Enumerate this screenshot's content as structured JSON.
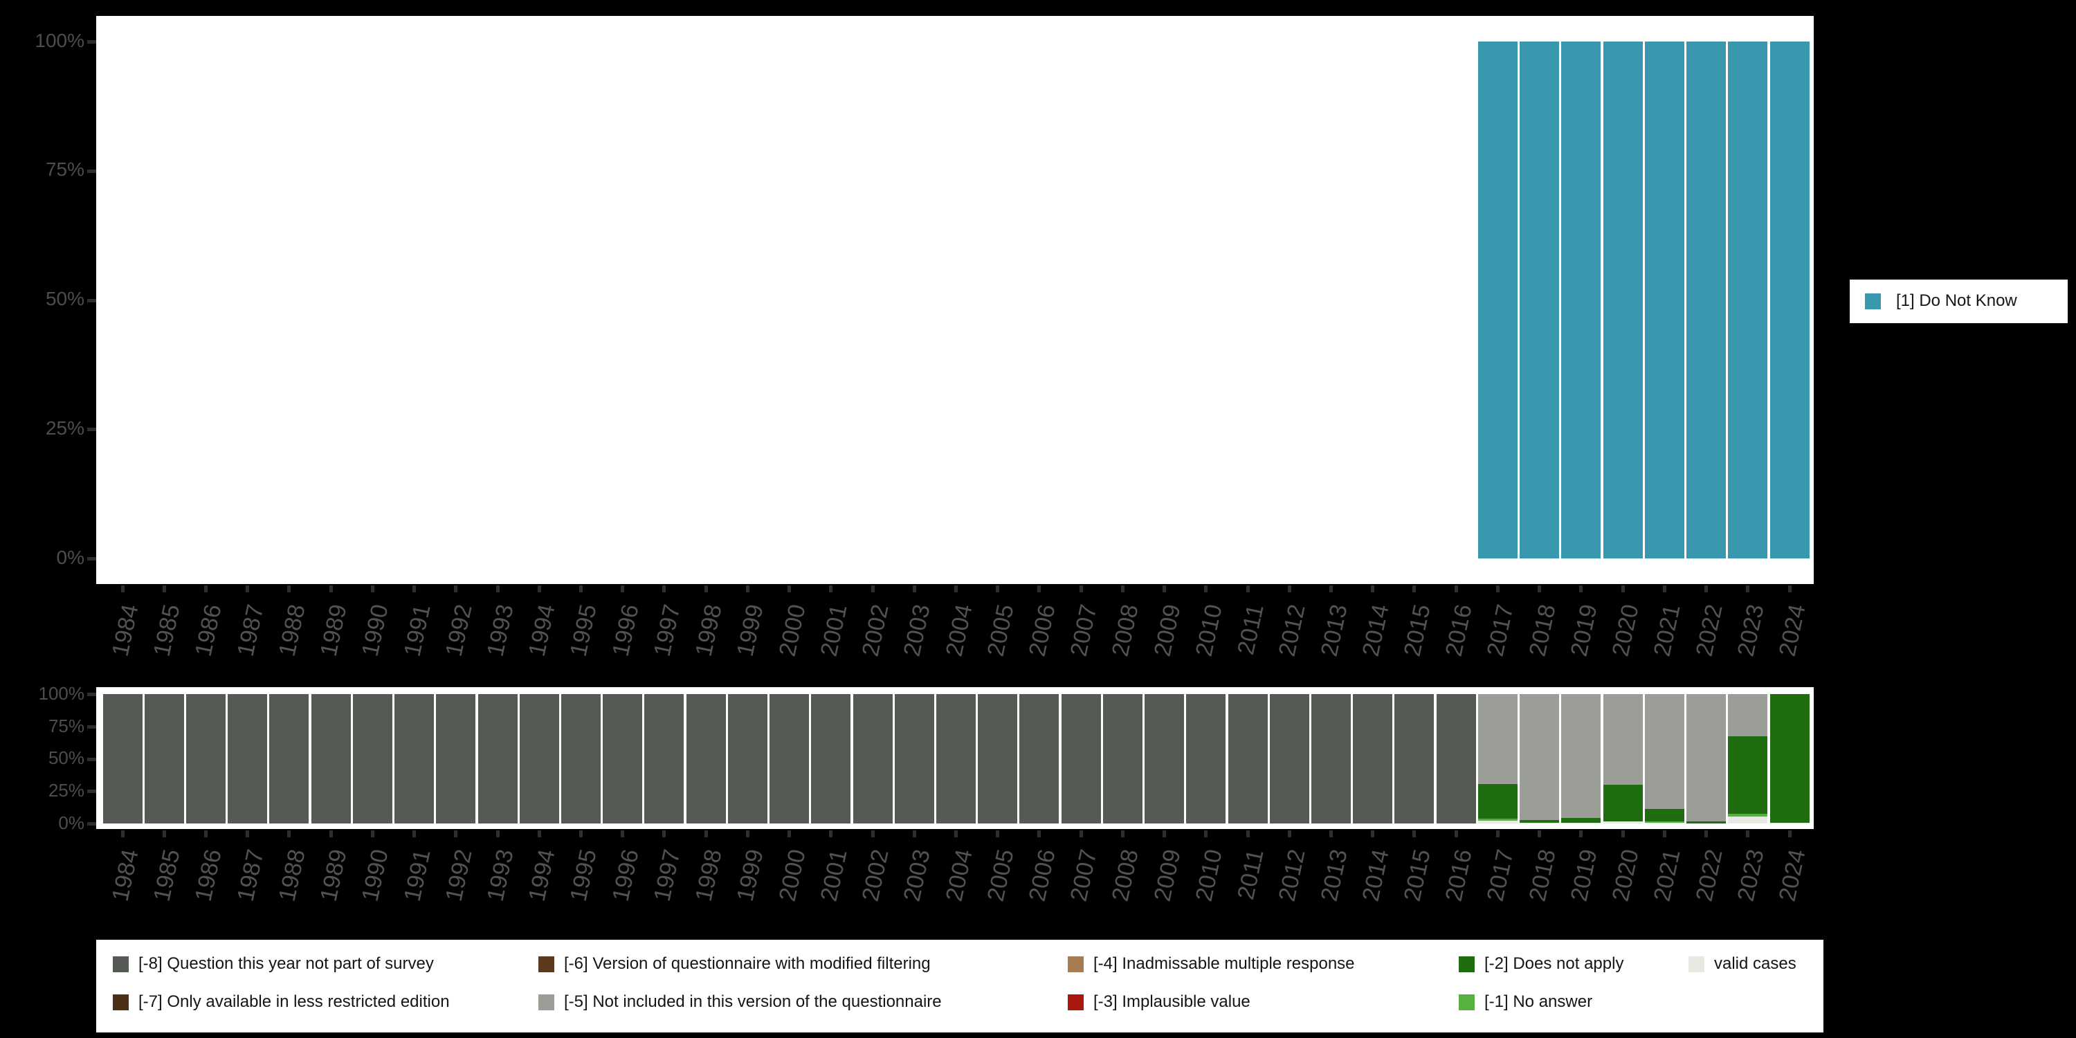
{
  "colors": {
    "cat1": "#3998AE",
    "neg8": "#555B54",
    "neg7": "#4B3015",
    "neg6": "#5C3A1D",
    "neg5": "#9A9E96",
    "neg4": "#A67C52",
    "neg3": "#A9170F",
    "neg2": "#206C10",
    "neg1": "#55B23F",
    "valid": "#E7E9E3",
    "axis_text": "#4d4d4d",
    "tick": "#2e2e2e",
    "panel_bg": "#ffffff",
    "page_bg": "#000000"
  },
  "chart_data": [
    {
      "type": "bar",
      "stacked": true,
      "title": "",
      "xlabel": "",
      "ylabel": "",
      "ylim": [
        0,
        100
      ],
      "grid": false,
      "legend_position": "right",
      "yticks": [
        "100%",
        "75%",
        "50%",
        "25%",
        "0%"
      ],
      "categories": [
        "1984",
        "1985",
        "1986",
        "1987",
        "1988",
        "1989",
        "1990",
        "1991",
        "1992",
        "1993",
        "1994",
        "1995",
        "1996",
        "1997",
        "1998",
        "1999",
        "2000",
        "2001",
        "2002",
        "2003",
        "2004",
        "2005",
        "2006",
        "2007",
        "2008",
        "2009",
        "2010",
        "2011",
        "2012",
        "2013",
        "2014",
        "2015",
        "2016",
        "2017",
        "2018",
        "2019",
        "2020",
        "2021",
        "2022",
        "2023",
        "2024"
      ],
      "series": [
        {
          "name": "[1] Do Not Know",
          "key": "cat1",
          "values": [
            0,
            0,
            0,
            0,
            0,
            0,
            0,
            0,
            0,
            0,
            0,
            0,
            0,
            0,
            0,
            0,
            0,
            0,
            0,
            0,
            0,
            0,
            0,
            0,
            0,
            0,
            0,
            0,
            0,
            0,
            0,
            0,
            0,
            100,
            100,
            100,
            100,
            100,
            100,
            100,
            100
          ]
        }
      ]
    },
    {
      "type": "bar",
      "stacked": true,
      "title": "",
      "xlabel": "",
      "ylabel": "",
      "ylim": [
        0,
        100
      ],
      "grid": false,
      "legend_position": "bottom",
      "yticks": [
        "100%",
        "75%",
        "50%",
        "25%",
        "0%"
      ],
      "categories": [
        "1984",
        "1985",
        "1986",
        "1987",
        "1988",
        "1989",
        "1990",
        "1991",
        "1992",
        "1993",
        "1994",
        "1995",
        "1996",
        "1997",
        "1998",
        "1999",
        "2000",
        "2001",
        "2002",
        "2003",
        "2004",
        "2005",
        "2006",
        "2007",
        "2008",
        "2009",
        "2010",
        "2011",
        "2012",
        "2013",
        "2014",
        "2015",
        "2016",
        "2017",
        "2018",
        "2019",
        "2020",
        "2021",
        "2022",
        "2023",
        "2024"
      ],
      "series": [
        {
          "name": "[-8] Question this year not part of survey",
          "key": "neg8",
          "values": [
            100,
            100,
            100,
            100,
            100,
            100,
            100,
            100,
            100,
            100,
            100,
            100,
            100,
            100,
            100,
            100,
            100,
            100,
            100,
            100,
            100,
            100,
            100,
            100,
            100,
            100,
            100,
            100,
            100,
            100,
            100,
            100,
            100,
            0,
            0,
            0,
            0,
            0,
            0,
            0,
            0
          ]
        },
        {
          "name": "[-7] Only available in less restricted edition",
          "key": "neg7",
          "values": [
            0,
            0,
            0,
            0,
            0,
            0,
            0,
            0,
            0,
            0,
            0,
            0,
            0,
            0,
            0,
            0,
            0,
            0,
            0,
            0,
            0,
            0,
            0,
            0,
            0,
            0,
            0,
            0,
            0,
            0,
            0,
            0,
            0,
            0,
            0,
            0,
            0,
            0,
            0,
            0,
            0
          ]
        },
        {
          "name": "[-6] Version of questionnaire with modified filtering",
          "key": "neg6",
          "values": [
            0,
            0,
            0,
            0,
            0,
            0,
            0,
            0,
            0,
            0,
            0,
            0,
            0,
            0,
            0,
            0,
            0,
            0,
            0,
            0,
            0,
            0,
            0,
            0,
            0,
            0,
            0,
            0,
            0,
            0,
            0,
            0,
            0,
            0,
            0,
            0,
            0,
            0,
            0,
            0,
            0
          ]
        },
        {
          "name": "[-5] Not included in this version of the questionnaire",
          "key": "neg5",
          "values": [
            0,
            0,
            0,
            0,
            0,
            0,
            0,
            0,
            0,
            0,
            0,
            0,
            0,
            0,
            0,
            0,
            0,
            0,
            0,
            0,
            0,
            0,
            0,
            0,
            0,
            0,
            0,
            0,
            0,
            0,
            0,
            0,
            0,
            69.4,
            97.2,
            95.7,
            69.9,
            89.0,
            98.6,
            32.7,
            0
          ]
        },
        {
          "name": "[-4] Inadmissable multiple response",
          "key": "neg4",
          "values": [
            0,
            0,
            0,
            0,
            0,
            0,
            0,
            0,
            0,
            0,
            0,
            0,
            0,
            0,
            0,
            0,
            0,
            0,
            0,
            0,
            0,
            0,
            0,
            0,
            0,
            0,
            0,
            0,
            0,
            0,
            0,
            0,
            0,
            0,
            0,
            0,
            0,
            0,
            0,
            0,
            0
          ]
        },
        {
          "name": "[-3] Implausible value",
          "key": "neg3",
          "values": [
            0,
            0,
            0,
            0,
            0,
            0,
            0,
            0,
            0,
            0,
            0,
            0,
            0,
            0,
            0,
            0,
            0,
            0,
            0,
            0,
            0,
            0,
            0,
            0,
            0,
            0,
            0,
            0,
            0,
            0,
            0,
            0,
            0,
            0,
            0,
            0,
            0,
            0,
            0,
            0,
            0
          ]
        },
        {
          "name": "[-2] Does not apply",
          "key": "neg2",
          "values": [
            0,
            0,
            0,
            0,
            0,
            0,
            0,
            0,
            0,
            0,
            0,
            0,
            0,
            0,
            0,
            0,
            0,
            0,
            0,
            0,
            0,
            0,
            0,
            0,
            0,
            0,
            0,
            0,
            0,
            0,
            0,
            0,
            0,
            26.7,
            2.4,
            3.9,
            28.3,
            9.3,
            1.4,
            59.8,
            99.2
          ]
        },
        {
          "name": "[-1] No answer",
          "key": "neg1",
          "values": [
            0,
            0,
            0,
            0,
            0,
            0,
            0,
            0,
            0,
            0,
            0,
            0,
            0,
            0,
            0,
            0,
            0,
            0,
            0,
            0,
            0,
            0,
            0,
            0,
            0,
            0,
            0,
            0,
            0,
            0,
            0,
            0,
            0,
            1.8,
            0,
            0,
            0,
            1.2,
            0,
            2.2,
            0
          ]
        },
        {
          "name": "valid cases",
          "key": "valid",
          "values": [
            0,
            0,
            0,
            0,
            0,
            0,
            0,
            0,
            0,
            0,
            0,
            0,
            0,
            0,
            0,
            0,
            0,
            0,
            0,
            0,
            0,
            0,
            0,
            0,
            0,
            0,
            0,
            0,
            0,
            0,
            0,
            0,
            0,
            2.1,
            0.4,
            0.4,
            1.8,
            0.5,
            0,
            5.3,
            0.8
          ]
        }
      ]
    }
  ],
  "top_legend": {
    "items": [
      {
        "key": "cat1",
        "label": "[1] Do Not Know"
      }
    ]
  },
  "bottom_legend": {
    "rows": [
      [
        {
          "key": "neg8",
          "label": "[-8] Question this year not part of survey"
        },
        {
          "key": "neg6",
          "label": "[-6] Version of questionnaire with modified filtering"
        },
        {
          "key": "neg4",
          "label": "[-4] Inadmissable multiple response"
        },
        {
          "key": "neg2",
          "label": "[-2] Does not apply"
        },
        {
          "key": "valid",
          "label": "valid cases"
        }
      ],
      [
        {
          "key": "neg7",
          "label": "[-7] Only available in less restricted edition"
        },
        {
          "key": "neg5",
          "label": "[-5] Not included in this version of the questionnaire"
        },
        {
          "key": "neg3",
          "label": "[-3] Implausible value"
        },
        {
          "key": "neg1",
          "label": "[-1] No answer"
        }
      ]
    ]
  }
}
